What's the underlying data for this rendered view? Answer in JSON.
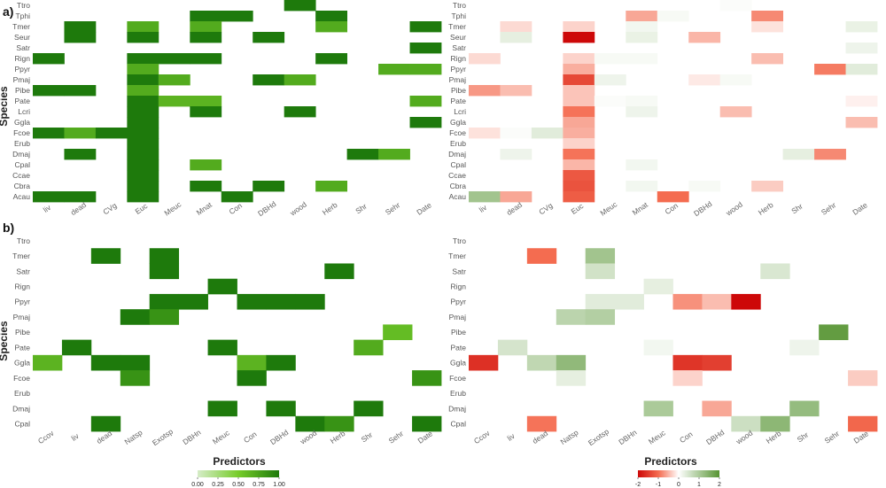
{
  "figure": {
    "ylabel": "Species",
    "xlabel": "Predictors",
    "legend_left": {
      "ticks": [
        "0.00",
        "0.25",
        "0.50",
        "0.75",
        "1.00"
      ]
    },
    "legend_right": {
      "ticks": [
        "-2",
        "-1",
        "0",
        "1",
        "2"
      ]
    }
  },
  "chart_data": [
    {
      "type": "heatmap",
      "panel_label": "a)",
      "metric": "importance",
      "scale": [
        0,
        1
      ],
      "x": [
        "liv",
        "dead",
        "CVg",
        "Euc",
        "Meuc",
        "Mnat",
        "Con",
        "DBHd",
        "wood",
        "Herb",
        "Shr",
        "Sehr",
        "Date"
      ],
      "y": [
        "Ttro",
        "Tphi",
        "Tmer",
        "Seur",
        "Satr",
        "Rign",
        "Ppyr",
        "Pmaj",
        "Pibe",
        "Pate",
        "Lcri",
        "Ggla",
        "Fcoe",
        "Erub",
        "Dmaj",
        "Cpal",
        "Ccae",
        "Cbra",
        "Acau"
      ],
      "cells": [
        [
          "Ttro",
          "wood",
          1.0
        ],
        [
          "Tphi",
          "Mnat",
          1.0
        ],
        [
          "Tphi",
          "Con",
          1.0
        ],
        [
          "Tphi",
          "Herb",
          1.0
        ],
        [
          "Tmer",
          "dead",
          1.0
        ],
        [
          "Tmer",
          "Euc",
          0.7
        ],
        [
          "Tmer",
          "Mnat",
          0.7
        ],
        [
          "Tmer",
          "Herb",
          0.7
        ],
        [
          "Tmer",
          "Date",
          1.0
        ],
        [
          "Seur",
          "dead",
          1.0
        ],
        [
          "Seur",
          "Euc",
          1.0
        ],
        [
          "Seur",
          "Mnat",
          1.0
        ],
        [
          "Seur",
          "DBHd",
          1.0
        ],
        [
          "Satr",
          "Date",
          1.0
        ],
        [
          "Rign",
          "liv",
          1.0
        ],
        [
          "Rign",
          "Euc",
          1.0
        ],
        [
          "Rign",
          "Meuc",
          1.0
        ],
        [
          "Rign",
          "Mnat",
          1.0
        ],
        [
          "Rign",
          "Herb",
          1.0
        ],
        [
          "Ppyr",
          "Euc",
          0.7
        ],
        [
          "Ppyr",
          "Sehr",
          0.7
        ],
        [
          "Ppyr",
          "Date",
          0.7
        ],
        [
          "Pmaj",
          "Euc",
          1.0
        ],
        [
          "Pmaj",
          "Meuc",
          0.7
        ],
        [
          "Pmaj",
          "DBHd",
          1.0
        ],
        [
          "Pmaj",
          "wood",
          0.7
        ],
        [
          "Pibe",
          "liv",
          1.0
        ],
        [
          "Pibe",
          "dead",
          1.0
        ],
        [
          "Pibe",
          "Euc",
          0.7
        ],
        [
          "Pate",
          "Euc",
          1.0
        ],
        [
          "Pate",
          "Meuc",
          0.65
        ],
        [
          "Pate",
          "Mnat",
          0.65
        ],
        [
          "Pate",
          "Date",
          0.7
        ],
        [
          "Lcri",
          "Euc",
          1.0
        ],
        [
          "Lcri",
          "Mnat",
          1.0
        ],
        [
          "Lcri",
          "wood",
          1.0
        ],
        [
          "Ggla",
          "Euc",
          1.0
        ],
        [
          "Ggla",
          "Date",
          1.0
        ],
        [
          "Fcoe",
          "liv",
          1.0
        ],
        [
          "Fcoe",
          "dead",
          0.7
        ],
        [
          "Fcoe",
          "CVg",
          1.0
        ],
        [
          "Fcoe",
          "Euc",
          1.0
        ],
        [
          "Erub",
          "Euc",
          1.0
        ],
        [
          "Dmaj",
          "dead",
          1.0
        ],
        [
          "Dmaj",
          "Euc",
          1.0
        ],
        [
          "Dmaj",
          "Shr",
          1.0
        ],
        [
          "Dmaj",
          "Sehr",
          0.7
        ],
        [
          "Cpal",
          "Euc",
          1.0
        ],
        [
          "Cpal",
          "Mnat",
          0.7
        ],
        [
          "Ccae",
          "Euc",
          1.0
        ],
        [
          "Cbra",
          "Euc",
          1.0
        ],
        [
          "Cbra",
          "Mnat",
          1.0
        ],
        [
          "Cbra",
          "DBHd",
          1.0
        ],
        [
          "Cbra",
          "Herb",
          0.7
        ],
        [
          "Acau",
          "liv",
          1.0
        ],
        [
          "Acau",
          "dead",
          1.0
        ],
        [
          "Acau",
          "Euc",
          1.0
        ],
        [
          "Acau",
          "Con",
          1.0
        ]
      ]
    },
    {
      "type": "heatmap",
      "panel_label": "",
      "metric": "effect",
      "scale": [
        -2,
        2
      ],
      "x": [
        "liv",
        "dead",
        "CVg",
        "Euc",
        "Meuc",
        "Mnat",
        "Con",
        "DBHd",
        "wood",
        "Herb",
        "Shr",
        "Sehr",
        "Date"
      ],
      "y": [
        "Ttro",
        "Tphi",
        "Tmer",
        "Seur",
        "Satr",
        "Rign",
        "Ppyr",
        "Pmaj",
        "Pibe",
        "Pate",
        "Lcri",
        "Ggla",
        "Fcoe",
        "Erub",
        "Dmaj",
        "Cpal",
        "Ccae",
        "Cbra",
        "Acau"
      ],
      "cells": [
        [
          "Ttro",
          "wood",
          0.05
        ],
        [
          "Tphi",
          "Mnat",
          -0.6
        ],
        [
          "Tphi",
          "Con",
          0.1
        ],
        [
          "Tphi",
          "Herb",
          -0.8
        ],
        [
          "Tmer",
          "dead",
          -0.25
        ],
        [
          "Tmer",
          "Euc",
          -0.3
        ],
        [
          "Tmer",
          "Mnat",
          0.15
        ],
        [
          "Tmer",
          "Herb",
          -0.2
        ],
        [
          "Tmer",
          "Date",
          0.25
        ],
        [
          "Seur",
          "dead",
          0.3
        ],
        [
          "Seur",
          "Euc",
          -2.2
        ],
        [
          "Seur",
          "Mnat",
          0.25
        ],
        [
          "Seur",
          "DBHd",
          -0.5
        ],
        [
          "Satr",
          "Date",
          0.2
        ],
        [
          "Rign",
          "liv",
          -0.25
        ],
        [
          "Rign",
          "Euc",
          -0.3
        ],
        [
          "Rign",
          "Meuc",
          0.1
        ],
        [
          "Rign",
          "Mnat",
          0.1
        ],
        [
          "Rign",
          "Herb",
          -0.45
        ],
        [
          "Ppyr",
          "Euc",
          -0.55
        ],
        [
          "Ppyr",
          "Sehr",
          -0.9
        ],
        [
          "Ppyr",
          "Date",
          0.35
        ],
        [
          "Pmaj",
          "Euc",
          -1.35
        ],
        [
          "Pmaj",
          "Meuc",
          0.2
        ],
        [
          "Pmaj",
          "DBHd",
          -0.15
        ],
        [
          "Pmaj",
          "wood",
          0.1
        ],
        [
          "Pibe",
          "liv",
          -0.7
        ],
        [
          "Pibe",
          "dead",
          -0.45
        ],
        [
          "Pibe",
          "Euc",
          -0.4
        ],
        [
          "Pate",
          "Euc",
          -0.4
        ],
        [
          "Pate",
          "Meuc",
          0.05
        ],
        [
          "Pate",
          "Mnat",
          0.1
        ],
        [
          "Pate",
          "Date",
          -0.1
        ],
        [
          "Lcri",
          "Euc",
          -0.95
        ],
        [
          "Lcri",
          "Mnat",
          0.2
        ],
        [
          "Lcri",
          "wood",
          -0.45
        ],
        [
          "Ggla",
          "Euc",
          -0.6
        ],
        [
          "Ggla",
          "Date",
          -0.45
        ],
        [
          "Fcoe",
          "liv",
          -0.2
        ],
        [
          "Fcoe",
          "dead",
          0.05
        ],
        [
          "Fcoe",
          "CVg",
          0.35
        ],
        [
          "Fcoe",
          "Euc",
          -0.55
        ],
        [
          "Erub",
          "Euc",
          -0.3
        ],
        [
          "Dmaj",
          "dead",
          0.2
        ],
        [
          "Dmaj",
          "Euc",
          -0.95
        ],
        [
          "Dmaj",
          "Shr",
          0.3
        ],
        [
          "Dmaj",
          "Sehr",
          -0.8
        ],
        [
          "Cpal",
          "Euc",
          -0.5
        ],
        [
          "Cpal",
          "Mnat",
          0.15
        ],
        [
          "Ccae",
          "Euc",
          -1.2
        ],
        [
          "Cbra",
          "Euc",
          -1.25
        ],
        [
          "Cbra",
          "Mnat",
          0.15
        ],
        [
          "Cbra",
          "DBHd",
          0.1
        ],
        [
          "Cbra",
          "Herb",
          -0.35
        ],
        [
          "Acau",
          "liv",
          1.1
        ],
        [
          "Acau",
          "dead",
          -0.6
        ],
        [
          "Acau",
          "Euc",
          -1.15
        ],
        [
          "Acau",
          "Con",
          -1.0
        ]
      ]
    },
    {
      "type": "heatmap",
      "panel_label": "b)",
      "metric": "importance",
      "scale": [
        0,
        1
      ],
      "x": [
        "Ccov",
        "liv",
        "dead",
        "Natsp",
        "Exotsp",
        "DBHn",
        "Meuc",
        "Con",
        "DBHd",
        "wood",
        "Herb",
        "Shr",
        "Sehr",
        "Date"
      ],
      "y": [
        "Ttro",
        "Tmer",
        "Satr",
        "Rign",
        "Ppyr",
        "Pmaj",
        "Pibe",
        "Pate",
        "Ggla",
        "Fcoe",
        "Erub",
        "Dmaj",
        "Cpal"
      ],
      "cells": [
        [
          "Tmer",
          "dead",
          1.0
        ],
        [
          "Tmer",
          "Exotsp",
          1.0
        ],
        [
          "Satr",
          "Exotsp",
          1.0
        ],
        [
          "Satr",
          "Herb",
          1.0
        ],
        [
          "Rign",
          "Meuc",
          1.0
        ],
        [
          "Ppyr",
          "Exotsp",
          1.0
        ],
        [
          "Ppyr",
          "DBHn",
          1.0
        ],
        [
          "Ppyr",
          "Con",
          1.0
        ],
        [
          "Ppyr",
          "DBHd",
          1.0
        ],
        [
          "Ppyr",
          "wood",
          1.0
        ],
        [
          "Pmaj",
          "Natsp",
          1.0
        ],
        [
          "Pmaj",
          "Exotsp",
          0.85
        ],
        [
          "Pibe",
          "Sehr",
          0.6
        ],
        [
          "Pate",
          "liv",
          1.0
        ],
        [
          "Pate",
          "Meuc",
          1.0
        ],
        [
          "Pate",
          "Shr",
          0.7
        ],
        [
          "Ggla",
          "Ccov",
          0.65
        ],
        [
          "Ggla",
          "dead",
          1.0
        ],
        [
          "Ggla",
          "Natsp",
          1.0
        ],
        [
          "Ggla",
          "Con",
          0.65
        ],
        [
          "Ggla",
          "DBHd",
          1.0
        ],
        [
          "Fcoe",
          "Natsp",
          0.85
        ],
        [
          "Fcoe",
          "Con",
          1.0
        ],
        [
          "Fcoe",
          "Date",
          0.85
        ],
        [
          "Dmaj",
          "Meuc",
          1.0
        ],
        [
          "Dmaj",
          "DBHd",
          1.0
        ],
        [
          "Dmaj",
          "Shr",
          1.0
        ],
        [
          "Cpal",
          "dead",
          1.0
        ],
        [
          "Cpal",
          "wood",
          1.0
        ],
        [
          "Cpal",
          "Herb",
          0.85
        ],
        [
          "Cpal",
          "Date",
          1.0
        ]
      ]
    },
    {
      "type": "heatmap",
      "panel_label": "",
      "metric": "effect",
      "scale": [
        -2,
        2
      ],
      "x": [
        "Ccov",
        "liv",
        "dead",
        "Natsp",
        "Exotsp",
        "DBHn",
        "Meuc",
        "Con",
        "DBHd",
        "wood",
        "Herb",
        "Shr",
        "Sehr",
        "Date"
      ],
      "y": [
        "Ttro",
        "Tmer",
        "Satr",
        "Rign",
        "Ppyr",
        "Pmaj",
        "Pibe",
        "Pate",
        "Ggla",
        "Fcoe",
        "Erub",
        "Dmaj",
        "Cpal"
      ],
      "cells": [
        [
          "Tmer",
          "dead",
          -1.0
        ],
        [
          "Tmer",
          "Exotsp",
          1.1
        ],
        [
          "Satr",
          "Exotsp",
          0.55
        ],
        [
          "Satr",
          "Herb",
          0.45
        ],
        [
          "Rign",
          "Meuc",
          0.3
        ],
        [
          "Ppyr",
          "Exotsp",
          0.35
        ],
        [
          "Ppyr",
          "DBHn",
          0.35
        ],
        [
          "Ppyr",
          "Con",
          -0.75
        ],
        [
          "Ppyr",
          "DBHd",
          -0.45
        ],
        [
          "Ppyr",
          "wood",
          -2.2
        ],
        [
          "Pmaj",
          "Natsp",
          0.8
        ],
        [
          "Pmaj",
          "Exotsp",
          0.9
        ],
        [
          "Pibe",
          "Sehr",
          1.85
        ],
        [
          "Pate",
          "liv",
          0.5
        ],
        [
          "Pate",
          "Meuc",
          0.15
        ],
        [
          "Pate",
          "Shr",
          0.2
        ],
        [
          "Ggla",
          "Ccov",
          -1.6
        ],
        [
          "Ggla",
          "dead",
          0.75
        ],
        [
          "Ggla",
          "Natsp",
          1.3
        ],
        [
          "Ggla",
          "Con",
          -1.55
        ],
        [
          "Ggla",
          "DBHd",
          -1.45
        ],
        [
          "Fcoe",
          "Natsp",
          0.3
        ],
        [
          "Fcoe",
          "Con",
          -0.3
        ],
        [
          "Fcoe",
          "Date",
          -0.35
        ],
        [
          "Dmaj",
          "Meuc",
          1.0
        ],
        [
          "Dmaj",
          "DBHd",
          -0.6
        ],
        [
          "Dmaj",
          "Shr",
          1.25
        ],
        [
          "Cpal",
          "dead",
          -0.95
        ],
        [
          "Cpal",
          "wood",
          0.6
        ],
        [
          "Cpal",
          "Herb",
          1.35
        ],
        [
          "Cpal",
          "Date",
          -1.05
        ]
      ]
    }
  ]
}
